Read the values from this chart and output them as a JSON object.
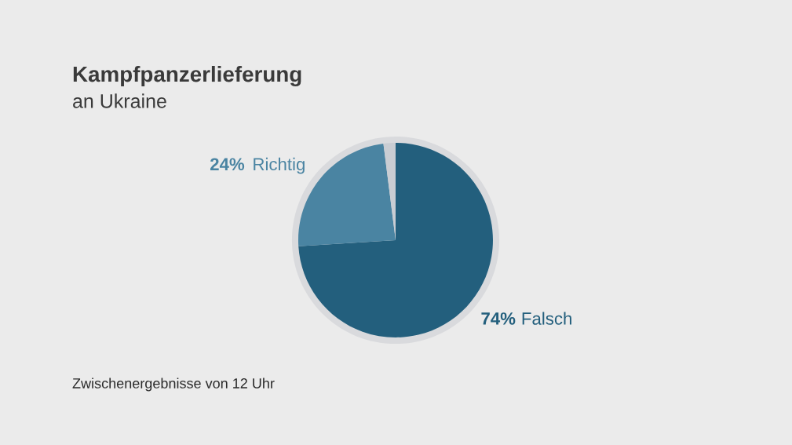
{
  "chart_data": {
    "type": "pie",
    "title": "Kampfpanzerlieferung",
    "subtitle": "an Ukraine",
    "categories": [
      "Falsch",
      "Richtig",
      null
    ],
    "values": [
      74,
      24,
      2
    ],
    "colors": [
      "#235f7d",
      "#4a84a2",
      "#c9cdd3"
    ],
    "value_labels": [
      "74%",
      "24%",
      null
    ],
    "annotations": [
      "Zwischenergebnisse von 12 Uhr"
    ]
  }
}
